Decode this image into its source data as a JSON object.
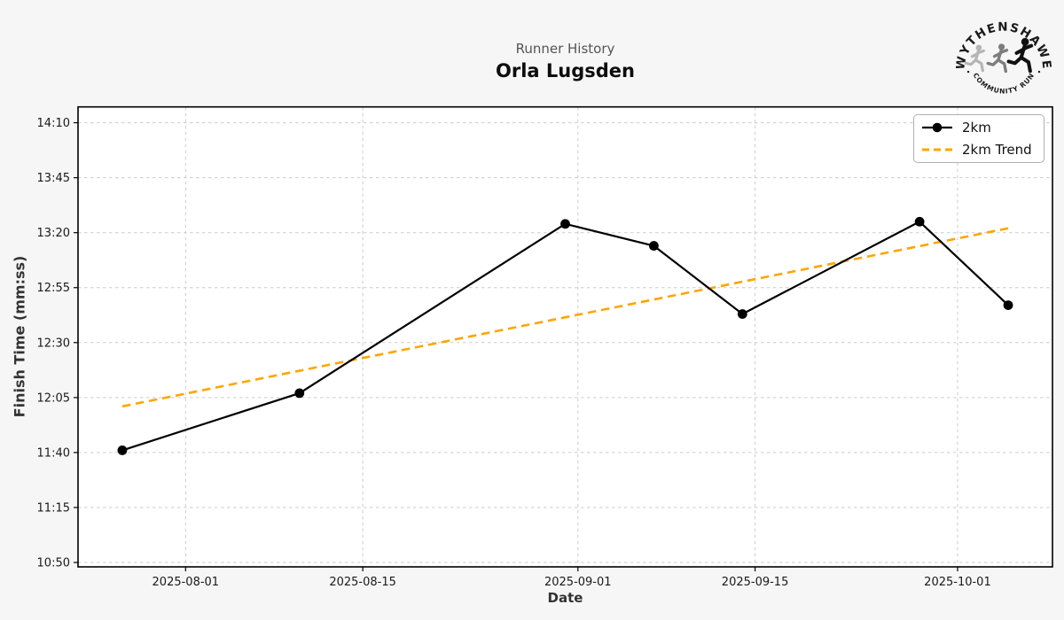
{
  "header": {
    "subtitle": "Runner History",
    "title": "Orla Lugsden"
  },
  "logo": {
    "arc_top": "WYTHENSHAWE",
    "arc_bottom": "COMMUNITY RUN"
  },
  "chart_data": {
    "type": "line",
    "title": "Runner History",
    "subtitle": "Orla Lugsden",
    "xlabel": "Date",
    "ylabel": "Finish Time (mm:ss)",
    "x_ticks": [
      "2025-08-01",
      "2025-08-15",
      "2025-09-01",
      "2025-09-15",
      "2025-10-01"
    ],
    "y_ticks": [
      "10:50",
      "11:15",
      "11:40",
      "12:05",
      "12:30",
      "12:55",
      "13:20",
      "13:45",
      "14:10"
    ],
    "grid": true,
    "legend_position": "upper right",
    "colors": {
      "series": "#000000",
      "trend": "#FFA500",
      "grid": "#cccccc",
      "plot_bg": "#ffffff",
      "fig_bg": "#f6f6f6"
    },
    "series": [
      {
        "name": "2km",
        "color": "#000000",
        "line_style": "solid",
        "markers": true,
        "x": [
          "2025-07-27",
          "2025-08-10",
          "2025-08-31",
          "2025-09-07",
          "2025-09-14",
          "2025-09-28",
          "2025-10-05"
        ],
        "y": [
          "11:41",
          "12:07",
          "13:24",
          "13:14",
          "12:43",
          "13:25",
          "12:47"
        ]
      },
      {
        "name": "2km Trend",
        "color": "#FFA500",
        "line_style": "dashed",
        "markers": false,
        "x": [
          "2025-07-27",
          "2025-10-05"
        ],
        "y": [
          "12:01",
          "13:22"
        ]
      }
    ]
  }
}
